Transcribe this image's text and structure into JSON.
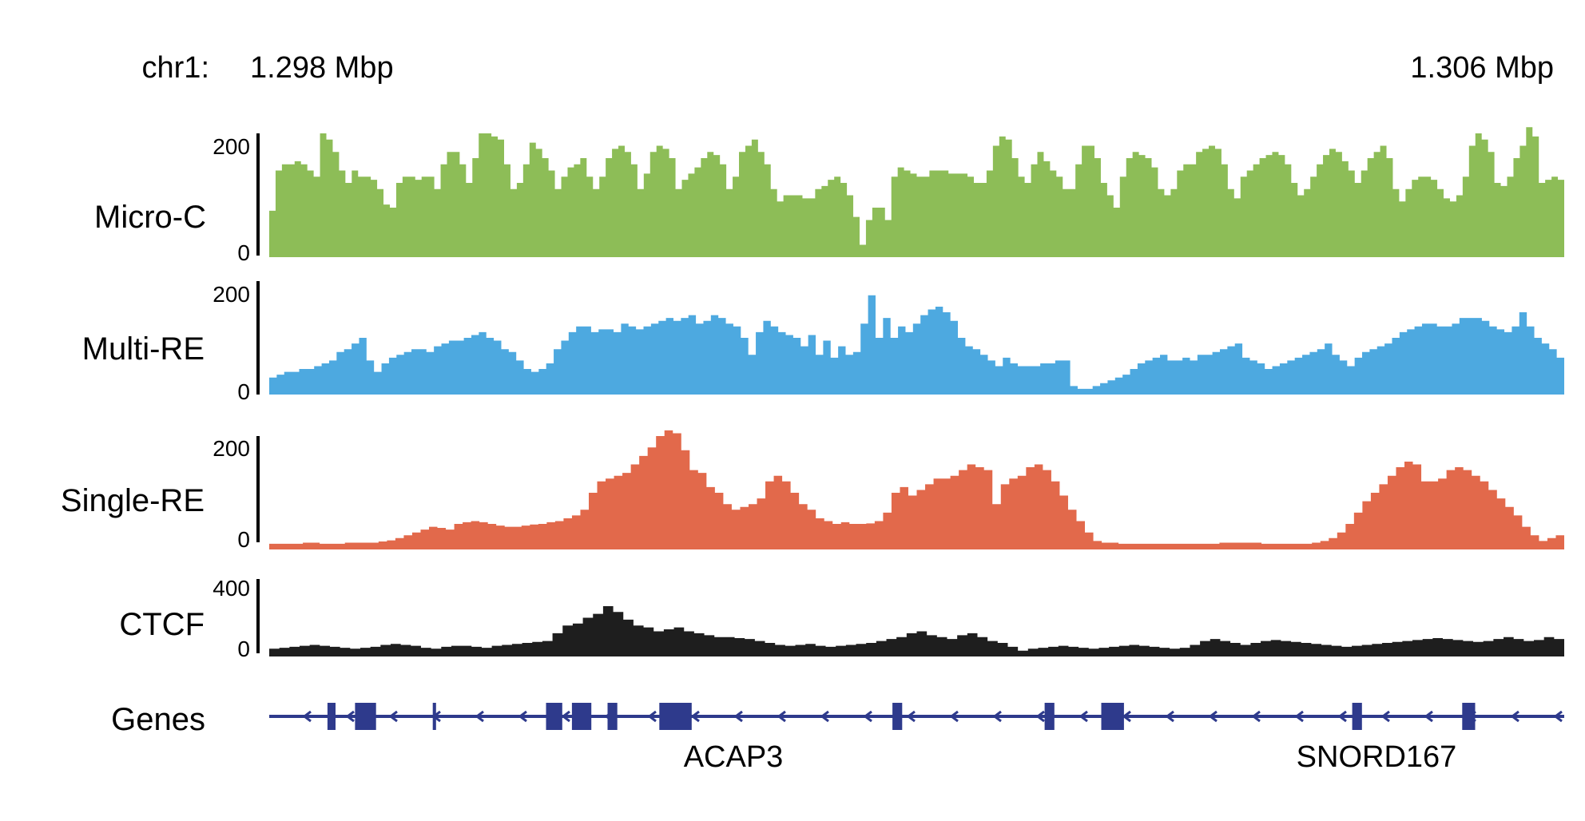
{
  "header": {
    "chrom_label": "chr1:",
    "start_label": "1.298 Mbp",
    "end_label": "1.306 Mbp"
  },
  "colors": {
    "micro_c": "#8dbd57",
    "multi_re": "#4da9e0",
    "single_re": "#e2694b",
    "ctcf": "#1e1e1e",
    "genes": "#2e3a8c"
  },
  "chart_data": {
    "type": "area",
    "x_range_mbp": [
      1.298,
      1.306
    ],
    "tracks": [
      {
        "name": "Micro-C",
        "ymin_label": "0",
        "ymax_label": "200",
        "ylim": [
          0,
          200
        ],
        "values": [
          75,
          140,
          150,
          150,
          155,
          150,
          140,
          130,
          200,
          190,
          170,
          140,
          120,
          140,
          130,
          130,
          125,
          110,
          85,
          80,
          120,
          130,
          130,
          125,
          130,
          130,
          110,
          150,
          170,
          170,
          150,
          120,
          160,
          200,
          200,
          195,
          190,
          150,
          110,
          120,
          150,
          185,
          175,
          160,
          140,
          110,
          130,
          145,
          150,
          160,
          130,
          110,
          130,
          160,
          175,
          180,
          170,
          150,
          110,
          135,
          170,
          180,
          175,
          160,
          110,
          125,
          135,
          145,
          160,
          170,
          165,
          150,
          110,
          130,
          170,
          180,
          190,
          170,
          150,
          110,
          90,
          100,
          100,
          100,
          95,
          95,
          110,
          115,
          125,
          130,
          120,
          100,
          65,
          20,
          60,
          80,
          80,
          60,
          130,
          145,
          140,
          135,
          130,
          130,
          140,
          140,
          140,
          135,
          135,
          135,
          130,
          120,
          120,
          140,
          180,
          195,
          190,
          160,
          130,
          120,
          150,
          170,
          155,
          140,
          130,
          110,
          110,
          150,
          180,
          180,
          160,
          120,
          100,
          80,
          130,
          160,
          170,
          165,
          160,
          145,
          110,
          100,
          110,
          140,
          150,
          150,
          170,
          175,
          180,
          175,
          150,
          110,
          95,
          130,
          140,
          150,
          160,
          165,
          170,
          165,
          150,
          120,
          100,
          110,
          130,
          150,
          165,
          175,
          170,
          155,
          140,
          120,
          140,
          160,
          170,
          180,
          160,
          110,
          90,
          110,
          125,
          130,
          130,
          125,
          110,
          95,
          90,
          100,
          130,
          180,
          200,
          190,
          170,
          120,
          115,
          130,
          160,
          180,
          210,
          195,
          120,
          125,
          130,
          125
        ]
      },
      {
        "name": "Multi-RE",
        "ymin_label": "0",
        "ymax_label": "200",
        "ylim": [
          0,
          200
        ],
        "values": [
          30,
          35,
          40,
          40,
          45,
          45,
          50,
          55,
          60,
          75,
          80,
          90,
          100,
          60,
          40,
          55,
          65,
          70,
          75,
          80,
          80,
          75,
          85,
          90,
          95,
          95,
          100,
          105,
          110,
          100,
          95,
          80,
          75,
          60,
          45,
          40,
          45,
          55,
          80,
          95,
          110,
          120,
          120,
          110,
          115,
          115,
          110,
          125,
          120,
          115,
          120,
          125,
          130,
          135,
          130,
          135,
          140,
          125,
          130,
          140,
          135,
          125,
          120,
          100,
          70,
          110,
          130,
          120,
          110,
          105,
          100,
          85,
          105,
          70,
          95,
          65,
          85,
          70,
          75,
          125,
          175,
          100,
          135,
          100,
          120,
          110,
          125,
          140,
          150,
          155,
          145,
          130,
          100,
          85,
          80,
          70,
          60,
          50,
          65,
          55,
          50,
          50,
          50,
          55,
          55,
          60,
          60,
          15,
          10,
          10,
          15,
          20,
          25,
          30,
          35,
          45,
          55,
          60,
          65,
          70,
          60,
          60,
          65,
          60,
          70,
          70,
          75,
          80,
          85,
          90,
          65,
          60,
          55,
          45,
          50,
          55,
          60,
          65,
          70,
          75,
          80,
          90,
          70,
          60,
          50,
          65,
          75,
          80,
          85,
          90,
          100,
          110,
          115,
          120,
          125,
          125,
          120,
          120,
          125,
          135,
          135,
          135,
          130,
          120,
          115,
          110,
          120,
          145,
          120,
          100,
          90,
          80,
          65
        ]
      },
      {
        "name": "Single-RE",
        "ymin_label": "0",
        "ymax_label": "200",
        "ylim": [
          0,
          200
        ],
        "values": [
          10,
          10,
          10,
          10,
          12,
          12,
          10,
          10,
          10,
          12,
          12,
          12,
          12,
          14,
          16,
          20,
          25,
          30,
          35,
          40,
          38,
          35,
          45,
          48,
          50,
          48,
          45,
          42,
          40,
          40,
          42,
          44,
          45,
          48,
          50,
          55,
          60,
          70,
          100,
          120,
          125,
          130,
          135,
          150,
          165,
          180,
          200,
          210,
          205,
          175,
          140,
          135,
          110,
          100,
          80,
          70,
          75,
          80,
          90,
          120,
          130,
          120,
          100,
          80,
          70,
          55,
          50,
          45,
          48,
          45,
          45,
          46,
          50,
          65,
          100,
          110,
          95,
          105,
          115,
          125,
          125,
          130,
          140,
          150,
          145,
          140,
          80,
          115,
          125,
          130,
          145,
          150,
          140,
          120,
          95,
          70,
          50,
          30,
          15,
          12,
          12,
          10,
          10,
          10,
          10,
          10,
          10,
          10,
          10,
          10,
          10,
          10,
          10,
          12,
          12,
          12,
          12,
          12,
          10,
          10,
          10,
          10,
          10,
          10,
          12,
          15,
          20,
          30,
          45,
          65,
          85,
          100,
          115,
          130,
          145,
          155,
          150,
          120,
          120,
          125,
          140,
          145,
          140,
          130,
          120,
          105,
          90,
          75,
          60,
          40,
          25,
          15,
          20,
          25
        ]
      },
      {
        "name": "CTCF",
        "ymin_label": "0",
        "ymax_label": "400",
        "ylim": [
          0,
          400
        ],
        "values": [
          40,
          45,
          50,
          55,
          60,
          55,
          50,
          45,
          40,
          45,
          50,
          60,
          65,
          60,
          55,
          45,
          40,
          50,
          55,
          55,
          50,
          45,
          55,
          60,
          65,
          70,
          75,
          80,
          120,
          160,
          170,
          200,
          220,
          260,
          230,
          190,
          160,
          150,
          130,
          140,
          150,
          130,
          120,
          110,
          100,
          100,
          95,
          90,
          80,
          70,
          60,
          55,
          60,
          65,
          55,
          50,
          55,
          60,
          65,
          70,
          80,
          90,
          100,
          120,
          130,
          110,
          100,
          90,
          110,
          120,
          100,
          80,
          70,
          50,
          30,
          40,
          45,
          50,
          55,
          50,
          45,
          40,
          45,
          50,
          55,
          60,
          55,
          50,
          45,
          40,
          45,
          60,
          80,
          90,
          80,
          70,
          60,
          70,
          80,
          85,
          80,
          75,
          70,
          65,
          60,
          55,
          50,
          55,
          60,
          65,
          70,
          75,
          80,
          85,
          90,
          95,
          90,
          85,
          80,
          75,
          80,
          90,
          100,
          90,
          80,
          85,
          100,
          90
        ]
      }
    ],
    "genes": {
      "name": "Genes",
      "labels": [
        "ACAP3",
        "SNORD167"
      ],
      "exons": [
        [
          1.29836,
          1.29841
        ],
        [
          1.29853,
          1.29866
        ],
        [
          1.29901,
          1.29903
        ],
        [
          1.29971,
          1.29981
        ],
        [
          1.29987,
          1.29999
        ],
        [
          1.30009,
          1.30015
        ],
        [
          1.30041,
          1.30061
        ],
        [
          1.30185,
          1.30191
        ],
        [
          1.30279,
          1.30285
        ],
        [
          1.30314,
          1.30328
        ],
        [
          1.30469,
          1.30475
        ],
        [
          1.30537,
          1.30545
        ]
      ]
    }
  }
}
